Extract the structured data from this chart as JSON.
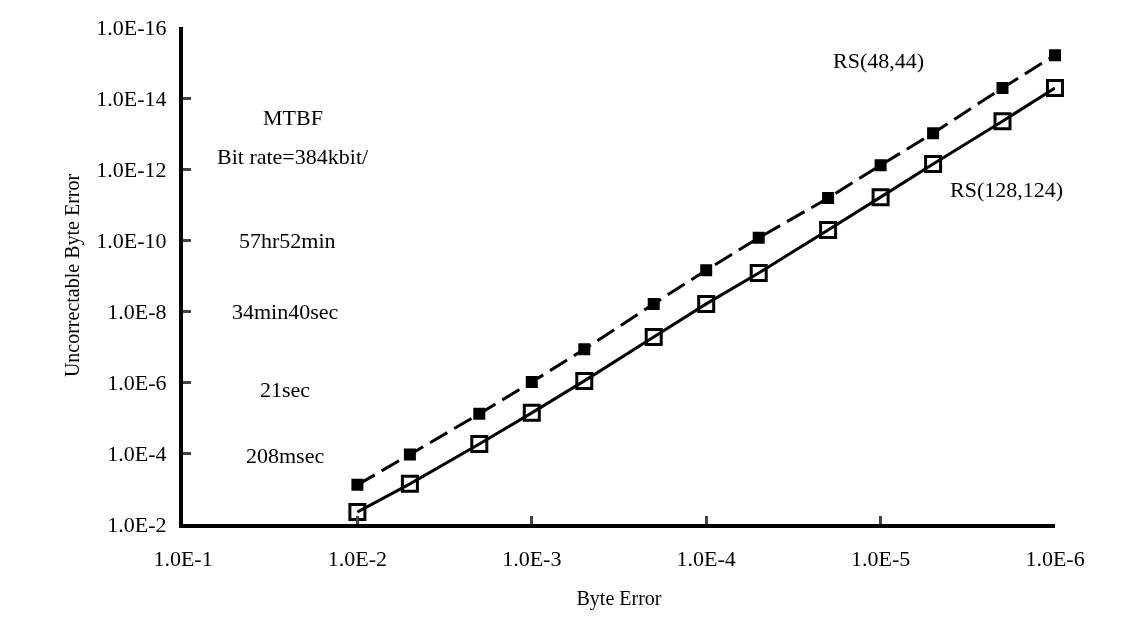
{
  "chart_data": {
    "type": "line",
    "xlabel": "Byte Error",
    "ylabel": "Uncorrectable Byte Error",
    "log": "xy",
    "grid": false,
    "legend": false,
    "marker": "square",
    "x": [
      0.01,
      0.005,
      0.002,
      0.001,
      0.0005,
      0.0002,
      0.0001,
      5e-05,
      2e-05,
      1e-05,
      5e-06,
      2e-06,
      1e-06
    ],
    "series": [
      {
        "name": "RS(48,44)",
        "color": "#000000",
        "line_style": "dashed",
        "values": [
          0.00079,
          0.00011,
          7.9e-06,
          1e-06,
          1.2e-07,
          6.3e-09,
          7.1e-10,
          8.7e-11,
          6.6e-12,
          7.8e-13,
          9.8e-14,
          5.2e-15,
          6.2e-16
        ]
      },
      {
        "name": "RS(128,124)",
        "color": "#000000",
        "line_style": "solid",
        "values": [
          0.0046,
          0.00074,
          5.6e-05,
          7.4e-06,
          9.3e-07,
          5.4e-08,
          6.3e-09,
          8.5e-10,
          5.2e-11,
          6.2e-12,
          7.2e-13,
          4.5e-14,
          5.2e-15
        ]
      }
    ],
    "xlim": [
      0.1,
      1e-06
    ],
    "xticks": [
      {
        "value": 0.1,
        "label": "1.0E-1"
      },
      {
        "value": 0.01,
        "label": "1.0E-2"
      },
      {
        "value": 0.001,
        "label": "1.0E-3"
      },
      {
        "value": 0.0001,
        "label": "1.0E-4"
      },
      {
        "value": 1e-05,
        "label": "1.0E-5"
      },
      {
        "value": 1e-06,
        "label": "1.0E-6"
      }
    ],
    "ylim": [
      0.01,
      1e-16
    ],
    "yticks": [
      {
        "value": 0.01,
        "label": "1.0E-2"
      },
      {
        "value": 0.0001,
        "label": "1.0E-4"
      },
      {
        "value": 1e-06,
        "label": "1.0E-6"
      },
      {
        "value": 1e-08,
        "label": "1.0E-8"
      },
      {
        "value": 1e-10,
        "label": "1.0E-10"
      },
      {
        "value": 1e-12,
        "label": "1.0E-12"
      },
      {
        "value": 1e-14,
        "label": "1.0E-14"
      },
      {
        "value": 1e-16,
        "label": "1.0E-16"
      }
    ],
    "annotations": [
      "MTBF",
      "Bit rate=384kbit/",
      "57hr52min",
      "34min40sec",
      "21sec",
      "208msec"
    ]
  }
}
